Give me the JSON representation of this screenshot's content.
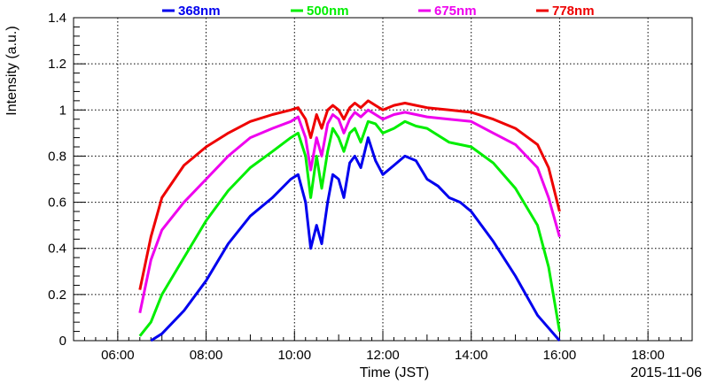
{
  "chart_data": {
    "type": "line",
    "title": "",
    "xlabel": "Time (JST)",
    "ylabel": "Intensity (a.u.)",
    "date_label": "2015-11-06",
    "xlim": [
      "05:00",
      "19:00"
    ],
    "ylim": [
      0,
      1.4
    ],
    "grid": true,
    "legend_position": "top",
    "x_ticks": [
      "06:00",
      "08:00",
      "10:00",
      "12:00",
      "14:00",
      "16:00",
      "18:00"
    ],
    "y_ticks": [
      "0",
      "0.2",
      "0.4",
      "0.6",
      "0.8",
      "1",
      "1.2",
      "1.4"
    ],
    "series": [
      {
        "name": "368nm",
        "color": "#0000ee",
        "points": [
          [
            "06:45",
            0.0
          ],
          [
            "07:00",
            0.03
          ],
          [
            "07:30",
            0.13
          ],
          [
            "08:00",
            0.26
          ],
          [
            "08:30",
            0.42
          ],
          [
            "09:00",
            0.54
          ],
          [
            "09:30",
            0.62
          ],
          [
            "09:55",
            0.7
          ],
          [
            "10:05",
            0.72
          ],
          [
            "10:15",
            0.6
          ],
          [
            "10:22",
            0.4
          ],
          [
            "10:30",
            0.5
          ],
          [
            "10:37",
            0.42
          ],
          [
            "10:45",
            0.6
          ],
          [
            "10:52",
            0.72
          ],
          [
            "11:00",
            0.7
          ],
          [
            "11:07",
            0.62
          ],
          [
            "11:15",
            0.77
          ],
          [
            "11:22",
            0.8
          ],
          [
            "11:30",
            0.75
          ],
          [
            "11:40",
            0.88
          ],
          [
            "11:50",
            0.78
          ],
          [
            "12:00",
            0.72
          ],
          [
            "12:15",
            0.76
          ],
          [
            "12:30",
            0.8
          ],
          [
            "12:45",
            0.78
          ],
          [
            "13:00",
            0.7
          ],
          [
            "13:15",
            0.67
          ],
          [
            "13:30",
            0.62
          ],
          [
            "13:45",
            0.6
          ],
          [
            "14:00",
            0.56
          ],
          [
            "14:30",
            0.43
          ],
          [
            "15:00",
            0.28
          ],
          [
            "15:30",
            0.11
          ],
          [
            "16:00",
            0.0
          ]
        ]
      },
      {
        "name": "500nm",
        "color": "#00ee00",
        "points": [
          [
            "06:30",
            0.02
          ],
          [
            "06:45",
            0.08
          ],
          [
            "07:00",
            0.2
          ],
          [
            "07:30",
            0.36
          ],
          [
            "08:00",
            0.52
          ],
          [
            "08:30",
            0.65
          ],
          [
            "09:00",
            0.75
          ],
          [
            "09:30",
            0.82
          ],
          [
            "09:55",
            0.88
          ],
          [
            "10:05",
            0.9
          ],
          [
            "10:15",
            0.8
          ],
          [
            "10:22",
            0.62
          ],
          [
            "10:30",
            0.8
          ],
          [
            "10:37",
            0.66
          ],
          [
            "10:45",
            0.82
          ],
          [
            "10:52",
            0.92
          ],
          [
            "11:00",
            0.88
          ],
          [
            "11:07",
            0.82
          ],
          [
            "11:15",
            0.9
          ],
          [
            "11:22",
            0.92
          ],
          [
            "11:30",
            0.86
          ],
          [
            "11:40",
            0.95
          ],
          [
            "11:50",
            0.94
          ],
          [
            "12:00",
            0.9
          ],
          [
            "12:15",
            0.92
          ],
          [
            "12:30",
            0.95
          ],
          [
            "12:45",
            0.93
          ],
          [
            "13:00",
            0.92
          ],
          [
            "13:30",
            0.86
          ],
          [
            "14:00",
            0.84
          ],
          [
            "14:30",
            0.77
          ],
          [
            "15:00",
            0.66
          ],
          [
            "15:30",
            0.5
          ],
          [
            "15:45",
            0.32
          ],
          [
            "16:00",
            0.04
          ]
        ]
      },
      {
        "name": "675nm",
        "color": "#ee00ee",
        "points": [
          [
            "06:30",
            0.12
          ],
          [
            "06:45",
            0.35
          ],
          [
            "07:00",
            0.48
          ],
          [
            "07:30",
            0.6
          ],
          [
            "08:00",
            0.7
          ],
          [
            "08:30",
            0.8
          ],
          [
            "09:00",
            0.88
          ],
          [
            "09:30",
            0.92
          ],
          [
            "09:55",
            0.95
          ],
          [
            "10:05",
            0.97
          ],
          [
            "10:15",
            0.88
          ],
          [
            "10:22",
            0.74
          ],
          [
            "10:30",
            0.88
          ],
          [
            "10:37",
            0.8
          ],
          [
            "10:45",
            0.94
          ],
          [
            "10:52",
            0.98
          ],
          [
            "11:00",
            0.96
          ],
          [
            "11:07",
            0.9
          ],
          [
            "11:15",
            0.96
          ],
          [
            "11:22",
            0.99
          ],
          [
            "11:30",
            0.97
          ],
          [
            "11:40",
            1.0
          ],
          [
            "11:50",
            0.98
          ],
          [
            "12:00",
            0.96
          ],
          [
            "12:15",
            0.98
          ],
          [
            "12:30",
            0.99
          ],
          [
            "12:45",
            0.98
          ],
          [
            "13:00",
            0.97
          ],
          [
            "13:30",
            0.96
          ],
          [
            "14:00",
            0.95
          ],
          [
            "14:30",
            0.9
          ],
          [
            "15:00",
            0.85
          ],
          [
            "15:30",
            0.75
          ],
          [
            "15:45",
            0.62
          ],
          [
            "16:00",
            0.45
          ]
        ]
      },
      {
        "name": "778nm",
        "color": "#ee0000",
        "points": [
          [
            "06:30",
            0.22
          ],
          [
            "06:45",
            0.45
          ],
          [
            "07:00",
            0.62
          ],
          [
            "07:30",
            0.76
          ],
          [
            "08:00",
            0.84
          ],
          [
            "08:30",
            0.9
          ],
          [
            "09:00",
            0.95
          ],
          [
            "09:30",
            0.98
          ],
          [
            "09:55",
            1.0
          ],
          [
            "10:05",
            1.01
          ],
          [
            "10:15",
            0.96
          ],
          [
            "10:22",
            0.88
          ],
          [
            "10:30",
            0.98
          ],
          [
            "10:37",
            0.92
          ],
          [
            "10:45",
            1.0
          ],
          [
            "10:52",
            1.02
          ],
          [
            "11:00",
            1.0
          ],
          [
            "11:07",
            0.96
          ],
          [
            "11:15",
            1.01
          ],
          [
            "11:22",
            1.03
          ],
          [
            "11:30",
            1.01
          ],
          [
            "11:40",
            1.04
          ],
          [
            "11:50",
            1.02
          ],
          [
            "12:00",
            1.0
          ],
          [
            "12:15",
            1.02
          ],
          [
            "12:30",
            1.03
          ],
          [
            "12:45",
            1.02
          ],
          [
            "13:00",
            1.01
          ],
          [
            "13:30",
            1.0
          ],
          [
            "14:00",
            0.99
          ],
          [
            "14:30",
            0.96
          ],
          [
            "15:00",
            0.92
          ],
          [
            "15:30",
            0.85
          ],
          [
            "15:45",
            0.75
          ],
          [
            "16:00",
            0.56
          ]
        ]
      }
    ]
  }
}
